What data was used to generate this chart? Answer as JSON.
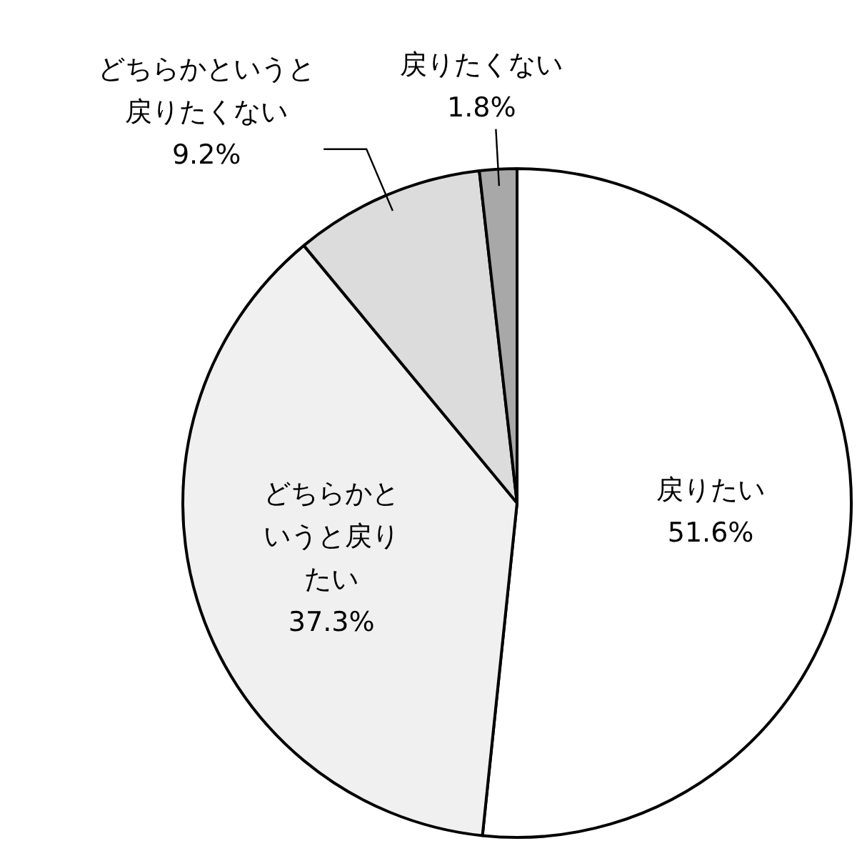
{
  "chart_data": {
    "type": "pie",
    "categories": [
      "戻りたい",
      "どちらかというと戻りたい",
      "どちらかというと戻りたくない",
      "戻りたくない"
    ],
    "values": [
      51.6,
      37.3,
      9.2,
      1.8
    ],
    "value_labels": [
      "51.6%",
      "37.3%",
      "9.2%",
      "1.8%"
    ],
    "colors": [
      "#ffffff",
      "#f0f0f0",
      "#dcdcdc",
      "#a8a8a8"
    ],
    "legend": false
  }
}
